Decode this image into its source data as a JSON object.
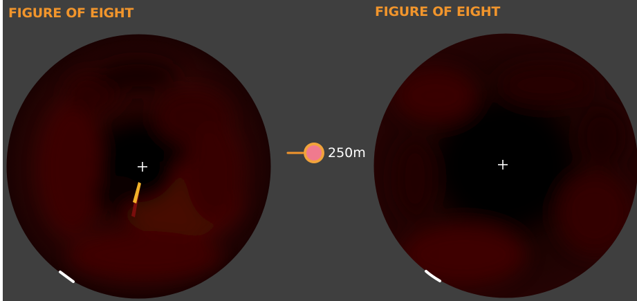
{
  "left_panel": {
    "title": "FIGURE OF EIGHT",
    "display": "sonar-sweep",
    "center_marker_icon": "crosshair-icon",
    "target_icon": "contact-trace-icon",
    "sweep_icon": "sweep-indicator-icon"
  },
  "right_panel": {
    "title": "FIGURE OF EIGHT",
    "display": "sonar-sweep",
    "center_marker_icon": "crosshair-icon",
    "sweep_icon": "sweep-indicator-icon"
  },
  "range_scale": {
    "label": "250m",
    "icon": "range-marker-icon"
  },
  "colors": {
    "background": "#3f3f3f",
    "title": "#f1952c",
    "sonar_dark": "#050000",
    "sonar_return": "#5a0a08",
    "marker_ring": "#f2a33c",
    "marker_fill": "#f07a8e",
    "contact": "#f3b12a",
    "contact_tail": "#8a1010"
  }
}
